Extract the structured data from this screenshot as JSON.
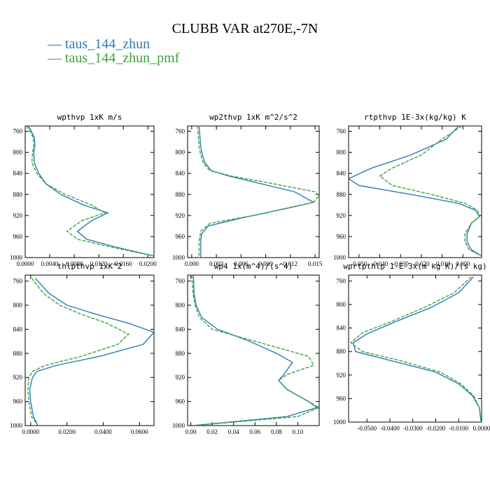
{
  "title": "CLUBB VAR at270E,-7N",
  "legend": [
    {
      "name": "taus_144_zhun",
      "color": "#2b7bb9"
    },
    {
      "name": "taus_144_zhun_pmf",
      "color": "#3aa33a"
    }
  ],
  "chart_data": [
    {
      "type": "line",
      "title": "wpthvp   1xK m/s",
      "ylim": [
        1000,
        750
      ],
      "yticks": [
        760,
        800,
        840,
        880,
        920,
        960,
        1000
      ],
      "ytick_labels": [
        "760",
        "800",
        "840",
        "880",
        "920",
        "960",
        "1000"
      ],
      "xlim": [
        0,
        0.021
      ],
      "xticks": [
        0,
        0.004,
        0.008,
        0.012,
        0.016,
        0.02
      ],
      "xtick_labels": [
        "0.0000",
        "0.0040",
        "0.0080",
        "0.0120",
        "0.0160",
        "0.0200"
      ],
      "series": [
        {
          "name": "taus_144_zhun",
          "color": "#2b7bb9",
          "dashed": false,
          "x": [
            0.0005,
            0.0009,
            0.0015,
            0.0016,
            0.0014,
            0.0015,
            0.0022,
            0.0034,
            0.0058,
            0.0095,
            0.0135,
            0.0108,
            0.0085,
            0.01,
            0.0148,
            0.021
          ],
          "y": [
            750,
            758,
            772,
            786,
            800,
            820,
            840,
            860,
            880,
            900,
            915,
            930,
            950,
            965,
            980,
            997
          ]
        },
        {
          "name": "taus_144_zhun_pmf",
          "color": "#3aa33a",
          "dashed": true,
          "x": [
            0.0002,
            0.0007,
            0.0013,
            0.0014,
            0.0012,
            0.0011,
            0.0019,
            0.0034,
            0.0065,
            0.0108,
            0.013,
            0.0092,
            0.0068,
            0.0085,
            0.014,
            0.021
          ],
          "y": [
            750,
            758,
            772,
            786,
            800,
            820,
            840,
            860,
            880,
            900,
            915,
            930,
            950,
            965,
            980,
            997
          ]
        }
      ]
    },
    {
      "type": "line",
      "title": "wp2thvp   1xK m^2/s^2",
      "ylim": [
        1000,
        750
      ],
      "yticks": [
        760,
        800,
        840,
        880,
        920,
        960,
        1000
      ],
      "ytick_labels": [
        "760",
        "800",
        "840",
        "880",
        "920",
        "960",
        "1000"
      ],
      "xlim": [
        -0.0005,
        0.0155
      ],
      "xticks": [
        0,
        0.003,
        0.006,
        0.009,
        0.012,
        0.015
      ],
      "xtick_labels": [
        "0.000",
        "0.003",
        "0.006",
        "0.009",
        "0.012",
        "0.015"
      ],
      "series": [
        {
          "name": "taus_144_zhun",
          "color": "#2b7bb9",
          "dashed": false,
          "x": [
            0.0009,
            0.001,
            0.0011,
            0.0013,
            0.0016,
            0.0024,
            0.0045,
            0.0085,
            0.0125,
            0.0148,
            0.012,
            0.006,
            0.002,
            0.0012,
            0.0011,
            0.0011,
            0.0011
          ],
          "y": [
            750,
            770,
            790,
            805,
            820,
            835,
            845,
            860,
            875,
            895,
            905,
            925,
            940,
            955,
            970,
            985,
            1000
          ]
        },
        {
          "name": "taus_144_zhun_pmf",
          "color": "#3aa33a",
          "dashed": true,
          "x": [
            0.0007,
            0.0008,
            0.0009,
            0.0011,
            0.0014,
            0.0022,
            0.0048,
            0.01,
            0.015,
            0.0155,
            0.0148,
            0.0075,
            0.0022,
            0.0011,
            0.0009,
            0.0009,
            0.0009
          ],
          "y": [
            750,
            770,
            790,
            805,
            820,
            835,
            845,
            860,
            875,
            882,
            895,
            920,
            935,
            950,
            970,
            985,
            1000
          ]
        }
      ]
    },
    {
      "type": "line",
      "title": "rtpthvp   1E-3x(kg/kg) K",
      "ylim": [
        1000,
        750
      ],
      "yticks": [
        760,
        800,
        840,
        880,
        920,
        960,
        1000
      ],
      "ytick_labels": [
        "760",
        "800",
        "840",
        "880",
        "920",
        "960",
        "1000"
      ],
      "xlim": [
        -0.055,
        0.009
      ],
      "xticks": [
        -0.05,
        -0.04,
        -0.03,
        -0.02,
        -0.01,
        0
      ],
      "xtick_labels": [
        "-0.050",
        "-0.040",
        "-0.030",
        "-0.020",
        "-0.010",
        "0.000"
      ],
      "series": [
        {
          "name": "taus_144_zhun",
          "color": "#2b7bb9",
          "dashed": false,
          "x": [
            -0.002,
            -0.008,
            -0.025,
            -0.044,
            -0.055,
            -0.05,
            -0.025,
            -0.002,
            0.006,
            0.008,
            0.004,
            0.002,
            0.002,
            0.004,
            0.009
          ],
          "y": [
            750,
            775,
            805,
            830,
            850,
            863,
            880,
            897,
            910,
            922,
            935,
            955,
            970,
            985,
            997
          ]
        },
        {
          "name": "taus_144_zhun_pmf",
          "color": "#3aa33a",
          "dashed": true,
          "x": [
            -0.0005,
            -0.01,
            -0.02,
            -0.034,
            -0.04,
            -0.034,
            -0.015,
            0.001,
            0.007,
            0.008,
            0.004,
            0.001,
            0.001,
            0.003,
            0.009
          ],
          "y": [
            750,
            775,
            805,
            830,
            845,
            863,
            880,
            897,
            910,
            922,
            935,
            955,
            970,
            985,
            997
          ]
        }
      ]
    },
    {
      "type": "line",
      "title": "thlpthvp   1xK^2",
      "ylim": [
        1000,
        750
      ],
      "yticks": [
        760,
        800,
        840,
        880,
        920,
        960,
        1000
      ],
      "ytick_labels": [
        "760",
        "800",
        "840",
        "880",
        "920",
        "960",
        "1000"
      ],
      "xlim": [
        -0.003,
        0.068
      ],
      "xticks": [
        0,
        0.02,
        0.04,
        0.06
      ],
      "xtick_labels": [
        "0.0000",
        "0.0200",
        "0.0400",
        "0.0600"
      ],
      "series": [
        {
          "name": "taus_144_zhun",
          "color": "#2b7bb9",
          "dashed": false,
          "x": [
            0.0025,
            0.01,
            0.02,
            0.036,
            0.054,
            0.068,
            0.062,
            0.038,
            0.014,
            0.0035,
            0.001,
            -0.0005,
            0.0,
            0.0015,
            0.004
          ],
          "y": [
            755,
            780,
            800,
            815,
            830,
            845,
            865,
            885,
            900,
            910,
            920,
            940,
            960,
            985,
            1000
          ]
        },
        {
          "name": "taus_144_zhun_pmf",
          "color": "#3aa33a",
          "dashed": true,
          "x": [
            0.0005,
            0.007,
            0.016,
            0.028,
            0.042,
            0.054,
            0.048,
            0.028,
            0.008,
            0.001,
            -0.001,
            -0.0015,
            -0.001,
            0.0005,
            0.004
          ],
          "y": [
            755,
            780,
            800,
            815,
            830,
            848,
            865,
            885,
            900,
            910,
            920,
            940,
            960,
            985,
            1000
          ]
        }
      ]
    },
    {
      "type": "line",
      "title": "wp4   1x(m^4)/(s^4)",
      "ylim": [
        1000,
        750
      ],
      "yticks": [
        760,
        800,
        840,
        880,
        920,
        960,
        1000
      ],
      "ytick_labels": [
        "760",
        "800",
        "840",
        "880",
        "920",
        "960",
        "1000"
      ],
      "xlim": [
        -0.003,
        0.12
      ],
      "xticks": [
        0,
        0.02,
        0.04,
        0.06,
        0.08,
        0.1
      ],
      "xtick_labels": [
        "0.00",
        "0.02",
        "0.04",
        "0.06",
        "0.08",
        "0.10"
      ],
      "series": [
        {
          "name": "taus_144_zhun",
          "color": "#2b7bb9",
          "dashed": false,
          "x": [
            0.0025,
            0.003,
            0.005,
            0.01,
            0.025,
            0.055,
            0.08,
            0.095,
            0.087,
            0.082,
            0.09,
            0.11,
            0.118,
            0.09,
            0.002
          ],
          "y": [
            750,
            780,
            800,
            820,
            840,
            860,
            880,
            895,
            915,
            925,
            940,
            960,
            970,
            985,
            1000
          ]
        },
        {
          "name": "taus_144_zhun_pmf",
          "color": "#3aa33a",
          "dashed": true,
          "x": [
            0.001,
            0.002,
            0.004,
            0.008,
            0.02,
            0.05,
            0.08,
            0.11,
            0.115,
            0.09,
            0.082,
            0.09,
            0.11,
            0.12,
            0.1,
            0.002
          ],
          "y": [
            750,
            780,
            800,
            820,
            840,
            855,
            870,
            885,
            900,
            915,
            925,
            940,
            960,
            970,
            985,
            1000
          ]
        }
      ]
    },
    {
      "type": "line",
      "title": "wprtpthlp   1-E-3x(m kg K)/(s kg)",
      "ylim": [
        1000,
        750
      ],
      "yticks": [
        760,
        800,
        840,
        880,
        920,
        960,
        1000
      ],
      "ytick_labels": [
        "760",
        "800",
        "840",
        "880",
        "920",
        "960",
        "1000"
      ],
      "xlim": [
        -0.058,
        0.0
      ],
      "xticks": [
        -0.05,
        -0.04,
        -0.03,
        -0.02,
        -0.01,
        0
      ],
      "xtick_labels": [
        "-0.0500",
        "-0.0400",
        "-0.0300",
        "-0.0200",
        "-0.0100",
        "0.0000"
      ],
      "series": [
        {
          "name": "taus_144_zhun",
          "color": "#2b7bb9",
          "dashed": false,
          "x": [
            -0.0035,
            -0.01,
            -0.022,
            -0.038,
            -0.05,
            -0.056,
            -0.055,
            -0.04,
            -0.02,
            -0.01,
            -0.004,
            -0.001,
            -0.0002
          ],
          "y": [
            753,
            780,
            805,
            830,
            850,
            865,
            880,
            895,
            915,
            935,
            955,
            975,
            1000
          ]
        },
        {
          "name": "taus_144_zhun_pmf",
          "color": "#3aa33a",
          "dashed": true,
          "x": [
            -0.0045,
            -0.012,
            -0.025,
            -0.04,
            -0.052,
            -0.057,
            -0.052,
            -0.036,
            -0.018,
            -0.009,
            -0.0035,
            -0.001,
            -0.0002
          ],
          "y": [
            753,
            780,
            805,
            830,
            848,
            865,
            880,
            895,
            915,
            935,
            955,
            975,
            1000
          ]
        }
      ]
    }
  ]
}
